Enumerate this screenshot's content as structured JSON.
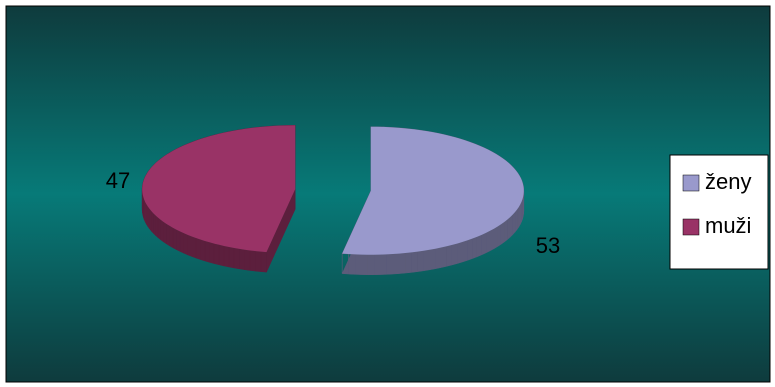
{
  "chart_data": {
    "type": "pie",
    "categories": [
      "ženy",
      "muži"
    ],
    "values": [
      53,
      47
    ],
    "colors": [
      "#9999cc",
      "#993366"
    ],
    "legend": "right",
    "exploded": true,
    "three_d": true
  }
}
